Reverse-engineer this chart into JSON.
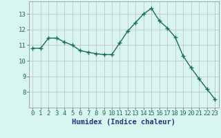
{
  "x": [
    0,
    1,
    2,
    3,
    4,
    5,
    6,
    7,
    8,
    9,
    10,
    11,
    12,
    13,
    14,
    15,
    16,
    17,
    18,
    19,
    20,
    21,
    22,
    23
  ],
  "y": [
    10.8,
    10.8,
    11.45,
    11.45,
    11.2,
    11.0,
    10.65,
    10.55,
    10.45,
    10.4,
    10.4,
    11.15,
    11.9,
    12.45,
    13.0,
    13.35,
    12.55,
    12.1,
    11.5,
    10.3,
    9.55,
    8.85,
    8.2,
    7.55
  ],
  "line_color": "#1a6b5a",
  "marker": "+",
  "marker_size": 4,
  "marker_lw": 1.0,
  "bg_color": "#d8f5f0",
  "grid_color": "#c4b8cc",
  "xlabel": "Humidex (Indice chaleur)",
  "xlabel_color": "#1a3a7a",
  "ylim": [
    7.0,
    13.8
  ],
  "xlim": [
    -0.5,
    23.5
  ],
  "yticks": [
    8,
    9,
    10,
    11,
    12,
    13
  ],
  "xticks": [
    0,
    1,
    2,
    3,
    4,
    5,
    6,
    7,
    8,
    9,
    10,
    11,
    12,
    13,
    14,
    15,
    16,
    17,
    18,
    19,
    20,
    21,
    22,
    23
  ],
  "tick_label_size": 6.5,
  "xlabel_size": 7.5,
  "line_width": 1.0
}
